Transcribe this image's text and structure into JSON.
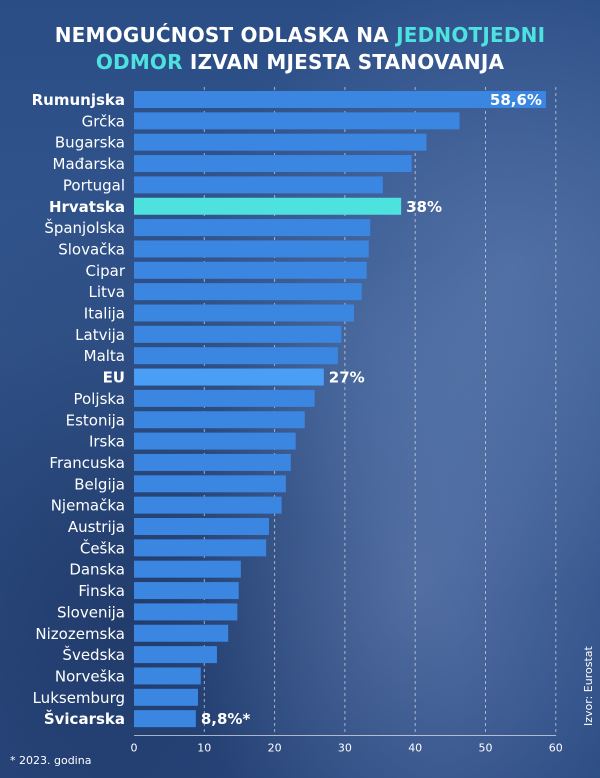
{
  "title": {
    "line1_prefix": "NEMOGUĆNOST ODLASKA NA",
    "line1_highlight": "JEDNOTJEDNI",
    "line2_highlight": "ODMOR",
    "line2_suffix": "IZVAN MJESTA STANOVANJA"
  },
  "footnote": "* 2023. godina",
  "source": "Izvor: Eurostat",
  "colors": {
    "bar": "#3a86e0",
    "highlight_bar": "#4ee2df",
    "eu_bar": "#4a9ef5",
    "title_accent": "#4ee2df",
    "text": "#ffffff"
  },
  "chart_data": {
    "type": "bar",
    "orientation": "horizontal",
    "categories": [
      "Rumunjska",
      "Grčka",
      "Bugarska",
      "Mađarska",
      "Portugal",
      "Hrvatska",
      "Španjolska",
      "Slovačka",
      "Cipar",
      "Litva",
      "Italija",
      "Latvija",
      "Malta",
      "EU",
      "Poljska",
      "Estonija",
      "Irska",
      "Francuska",
      "Belgija",
      "Njemačka",
      "Austrija",
      "Češka",
      "Danska",
      "Finska",
      "Slovenija",
      "Nizozemska",
      "Švedska",
      "Norveška",
      "Luksemburg",
      "Švicarska"
    ],
    "values": [
      58.6,
      46.3,
      41.6,
      39.5,
      35.4,
      38.0,
      33.6,
      33.4,
      33.1,
      32.4,
      31.3,
      29.5,
      29.0,
      27.0,
      25.7,
      24.3,
      23.0,
      22.3,
      21.6,
      21.0,
      19.2,
      18.8,
      15.2,
      14.9,
      14.7,
      13.4,
      11.8,
      9.5,
      9.1,
      8.8
    ],
    "bold_categories": [
      "Rumunjska",
      "Hrvatska",
      "EU",
      "Švicarska"
    ],
    "highlight_category": "Hrvatska",
    "eu_category": "EU",
    "value_labels": [
      {
        "category": "Rumunjska",
        "text": "58,6%",
        "inside": true
      },
      {
        "category": "Hrvatska",
        "text": "38%",
        "inside": false
      },
      {
        "category": "EU",
        "text": "27%",
        "inside": false
      },
      {
        "category": "Švicarska",
        "text": "8,8%*",
        "inside": false
      }
    ],
    "xlim": [
      0,
      60
    ],
    "xticks": [
      0,
      10,
      20,
      30,
      40,
      50,
      60
    ],
    "grid": true,
    "title": "NEMOGUĆNOST ODLASKA NA JEDNOTJEDNI ODMOR IZVAN MJESTA STANOVANJA",
    "xlabel": "",
    "ylabel": ""
  }
}
